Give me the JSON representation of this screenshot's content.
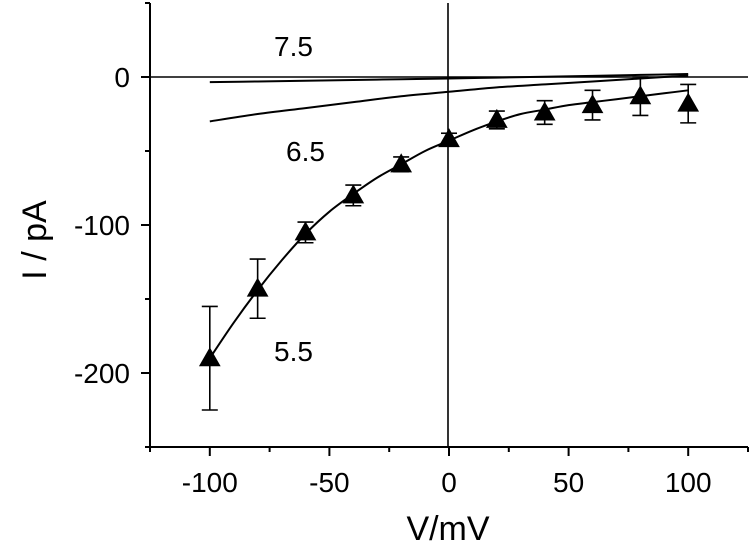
{
  "chart_data": {
    "type": "line",
    "xlabel": "V/mV",
    "ylabel": "I / pA",
    "xlim": [
      -125,
      125
    ],
    "ylim": [
      -250,
      50
    ],
    "x_ticks": [
      -100,
      -50,
      0,
      50,
      100
    ],
    "y_ticks": [
      -200,
      -100,
      0
    ],
    "grid": false,
    "series": [
      {
        "name": "7.5",
        "type": "line",
        "x": [
          -100,
          -80,
          -60,
          -40,
          -20,
          0,
          20,
          40,
          60,
          80,
          100
        ],
        "y": [
          -3.5,
          -3.0,
          -2.5,
          -2.0,
          -1.5,
          -1.0,
          -0.4,
          0.2,
          0.8,
          1.4,
          2.0
        ]
      },
      {
        "name": "6.5",
        "type": "line",
        "x": [
          -100,
          -80,
          -60,
          -40,
          -20,
          0,
          20,
          40,
          60,
          80,
          100
        ],
        "y": [
          -30,
          -25,
          -21,
          -17,
          -13,
          -10,
          -7,
          -5,
          -3,
          -1,
          1
        ]
      },
      {
        "name": "5.5",
        "type": "line",
        "x": [
          -100,
          -90,
          -80,
          -70,
          -60,
          -50,
          -40,
          -30,
          -20,
          -10,
          0,
          10,
          20,
          30,
          40,
          50,
          60,
          70,
          80,
          90,
          100
        ],
        "y": [
          -190,
          -166,
          -144,
          -124,
          -106,
          -91,
          -79,
          -68,
          -59,
          -50,
          -43,
          -36,
          -30,
          -25,
          -22,
          -19,
          -17,
          -15,
          -13,
          -11,
          -9
        ]
      },
      {
        "name": "5.5",
        "type": "scatter",
        "marker": "triangle",
        "x": [
          -100,
          -80,
          -60,
          -40,
          -20,
          0,
          20,
          40,
          60,
          80,
          100
        ],
        "y": [
          -190,
          -143,
          -105,
          -80,
          -59,
          -42,
          -29,
          -24,
          -19,
          -13,
          -18
        ],
        "error": [
          35,
          20,
          7,
          7,
          5,
          4,
          6,
          8,
          10,
          13,
          13
        ]
      }
    ],
    "annotations": [
      {
        "text": "7.5",
        "x": -65,
        "y": 21
      },
      {
        "text": "6.5",
        "x": -60,
        "y": -50
      },
      {
        "text": "5.5",
        "x": -65,
        "y": -185
      }
    ]
  }
}
